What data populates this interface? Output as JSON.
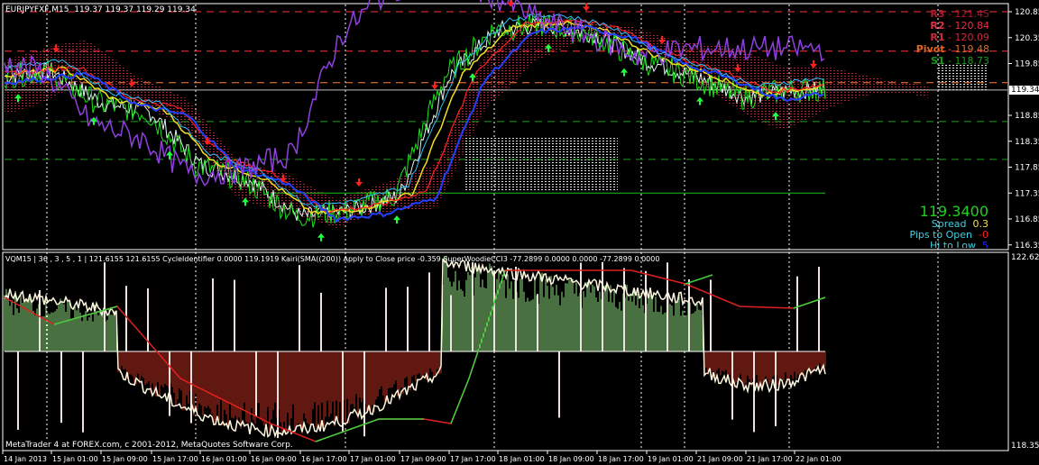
{
  "header": {
    "symbol": "EURJPYFXF,M15",
    "ohlc": "119.37 119.37 119.29 119.34"
  },
  "pivots": [
    {
      "name": "R3",
      "value": "121.45",
      "color": "#b0182b"
    },
    {
      "name": "R2",
      "value": "120.84",
      "color": "#e0304a"
    },
    {
      "name": "R1",
      "value": "120.09",
      "color": "#d02838"
    },
    {
      "name": "Pivot",
      "value": "119.48",
      "color": "#e06820"
    },
    {
      "name": "S1",
      "value": "118.73",
      "color": "#10a010"
    }
  ],
  "info": {
    "price": "119.3400",
    "spread_label": "Spread",
    "spread_value": "0.3",
    "pips_label": "Pips to Open",
    "pips_value": "-0",
    "hilo_label": "Hi to Low",
    "hilo_value": "5"
  },
  "indicator": {
    "header": "VQM15 | 36 , 3 , 5 , 1 |  121.6155 121.6155  CycleIdentifier 0.0000 119.1919  Kairi(SMA((200)) Apply to Close price -0.359  SuperWoodieCCI3 -77.2899 0.0000 0.0000 -77.2899 0.0000",
    "axis_top": "122.623",
    "axis_bottom": "118.354"
  },
  "footer": "MetaTrader 4 at FOREX.com, c 2001-2012, MetaQuotes Software Corp.",
  "current_price_label": "119.34",
  "chart_data": {
    "type": "line",
    "title": "EURJPYFXF,M15",
    "price_ticks": [
      "120.85",
      "120.35",
      "119.85",
      "118.85",
      "118.35",
      "117.85",
      "117.35",
      "116.85",
      "116.35"
    ],
    "ylim": [
      116.35,
      120.95
    ],
    "time_ticks": [
      "14 Jan 2013",
      "15 Jan 01:00",
      "15 Jan 09:00",
      "15 Jan 17:00",
      "16 Jan 01:00",
      "16 Jan 09:00",
      "16 Jan 17:00",
      "17 Jan 01:00",
      "17 Jan 09:00",
      "17 Jan 17:00",
      "18 Jan 01:00",
      "18 Jan 09:00",
      "18 Jan 17:00",
      "19 Jan 01:00",
      "21 Jan 09:00",
      "21 Jan 17:00",
      "22 Jan 01:00"
    ],
    "series": [
      {
        "values": [
          119.6,
          119.7,
          119.1,
          118.9,
          117.9,
          117.6,
          116.9,
          117.0,
          117.3,
          119.6,
          120.5,
          120.6,
          120.4,
          119.9,
          119.6,
          119.2,
          119.34
        ]
      }
    ],
    "colors": {
      "price": "#e0f8f0",
      "cloud": "#b02030",
      "up_arrow": "#20ff40",
      "down_arrow": "#ff2020",
      "histogram_up": "#90e080",
      "histogram_down": "#c03020"
    }
  }
}
